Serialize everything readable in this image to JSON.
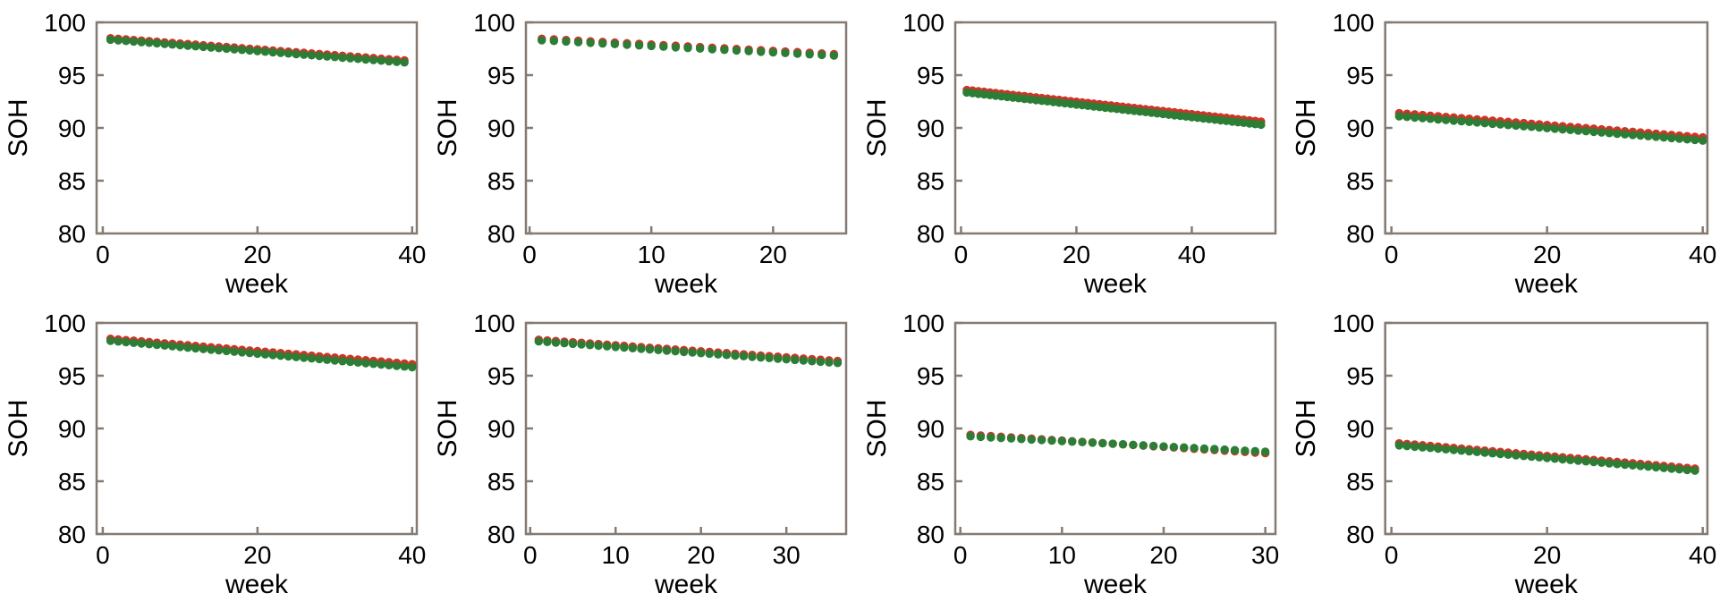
{
  "page": {
    "background": "#ffffff",
    "description": "2x4 grid of SOH degradation scatter plots, red and green dotted series declining linearly over weeks"
  },
  "colors": {
    "series_red": "#cd3527",
    "series_green": "#2c7d36",
    "axis": "#857a72",
    "text": "#000000"
  },
  "labels": {
    "y_axis": "SOH",
    "x_axis": "week"
  },
  "chart_data": [
    {
      "id": "subplot-1",
      "row": 1,
      "col": 1,
      "type": "scatter",
      "title": "",
      "xlabel": "week",
      "ylabel": "SOH",
      "ylim": [
        80,
        100
      ],
      "yticks": [
        80,
        85,
        90,
        95,
        100
      ],
      "xlim": [
        -0.8,
        40.6
      ],
      "xticks": [
        0,
        20,
        40
      ],
      "x_start_week": 1,
      "n_points": 39,
      "trend": "linear",
      "grid": false,
      "legend": "none",
      "series": [
        {
          "name": "red",
          "color": "#cd3527",
          "start": 98.5,
          "end": 96.4
        },
        {
          "name": "green",
          "color": "#2c7d36",
          "start": 98.35,
          "end": 96.2
        }
      ]
    },
    {
      "id": "subplot-2",
      "row": 1,
      "col": 2,
      "type": "scatter",
      "title": "",
      "xlabel": "week",
      "ylabel": "SOH",
      "ylim": [
        80,
        100
      ],
      "yticks": [
        80,
        85,
        90,
        95,
        100
      ],
      "xlim": [
        -0.3,
        26.0
      ],
      "xticks": [
        0,
        10,
        20
      ],
      "x_start_week": 1,
      "n_points": 25,
      "trend": "linear",
      "grid": false,
      "legend": "none",
      "series": [
        {
          "name": "red",
          "color": "#cd3527",
          "start": 98.45,
          "end": 97.0
        },
        {
          "name": "green",
          "color": "#2c7d36",
          "start": 98.3,
          "end": 96.85
        }
      ]
    },
    {
      "id": "subplot-3",
      "row": 1,
      "col": 3,
      "type": "scatter",
      "title": "",
      "xlabel": "week",
      "ylabel": "SOH",
      "ylim": [
        80,
        100
      ],
      "yticks": [
        80,
        85,
        90,
        95,
        100
      ],
      "xlim": [
        -1.0,
        54.5
      ],
      "xticks": [
        0,
        20,
        40
      ],
      "x_start_week": 1,
      "n_points": 52,
      "trend": "linear",
      "grid": false,
      "legend": "none",
      "series": [
        {
          "name": "red",
          "color": "#cd3527",
          "start": 93.6,
          "end": 90.6
        },
        {
          "name": "green",
          "color": "#2c7d36",
          "start": 93.35,
          "end": 90.3
        }
      ]
    },
    {
      "id": "subplot-4",
      "row": 1,
      "col": 4,
      "type": "scatter",
      "title": "",
      "xlabel": "week",
      "ylabel": "SOH",
      "ylim": [
        80,
        100
      ],
      "yticks": [
        80,
        85,
        90,
        95,
        100
      ],
      "xlim": [
        -0.8,
        40.6
      ],
      "xticks": [
        0,
        20,
        40
      ],
      "x_start_week": 1,
      "n_points": 40,
      "trend": "linear",
      "grid": false,
      "legend": "none",
      "series": [
        {
          "name": "red",
          "color": "#cd3527",
          "start": 91.4,
          "end": 89.1
        },
        {
          "name": "green",
          "color": "#2c7d36",
          "start": 91.1,
          "end": 88.8
        }
      ]
    },
    {
      "id": "subplot-5",
      "row": 2,
      "col": 1,
      "type": "scatter",
      "title": "",
      "xlabel": "week",
      "ylabel": "SOH",
      "ylim": [
        80,
        100
      ],
      "yticks": [
        80,
        85,
        90,
        95,
        100
      ],
      "xlim": [
        -0.8,
        40.6
      ],
      "xticks": [
        0,
        20,
        40
      ],
      "x_start_week": 1,
      "n_points": 40,
      "trend": "linear",
      "grid": false,
      "legend": "none",
      "series": [
        {
          "name": "red",
          "color": "#cd3527",
          "start": 98.5,
          "end": 96.1
        },
        {
          "name": "green",
          "color": "#2c7d36",
          "start": 98.3,
          "end": 95.8
        }
      ]
    },
    {
      "id": "subplot-6",
      "row": 2,
      "col": 2,
      "type": "scatter",
      "title": "",
      "xlabel": "week",
      "ylabel": "SOH",
      "ylim": [
        80,
        100
      ],
      "yticks": [
        80,
        85,
        90,
        95,
        100
      ],
      "xlim": [
        -0.5,
        37.0
      ],
      "xticks": [
        0,
        10,
        20,
        30
      ],
      "x_start_week": 1,
      "n_points": 36,
      "trend": "linear",
      "grid": false,
      "legend": "none",
      "series": [
        {
          "name": "red",
          "color": "#cd3527",
          "start": 98.4,
          "end": 96.4
        },
        {
          "name": "green",
          "color": "#2c7d36",
          "start": 98.25,
          "end": 96.2
        }
      ]
    },
    {
      "id": "subplot-7",
      "row": 2,
      "col": 3,
      "type": "scatter",
      "title": "",
      "xlabel": "week",
      "ylabel": "SOH",
      "ylim": [
        80,
        100
      ],
      "yticks": [
        80,
        85,
        90,
        95,
        100
      ],
      "xlim": [
        -0.5,
        31.0
      ],
      "xticks": [
        0,
        10,
        20,
        30
      ],
      "x_start_week": 1,
      "n_points": 30,
      "trend": "linear",
      "grid": false,
      "legend": "none",
      "series": [
        {
          "name": "red",
          "color": "#cd3527",
          "start": 89.4,
          "end": 87.65
        },
        {
          "name": "green",
          "color": "#2c7d36",
          "start": 89.25,
          "end": 87.8
        }
      ]
    },
    {
      "id": "subplot-8",
      "row": 2,
      "col": 4,
      "type": "scatter",
      "title": "",
      "xlabel": "week",
      "ylabel": "SOH",
      "ylim": [
        80,
        100
      ],
      "yticks": [
        80,
        85,
        90,
        95,
        100
      ],
      "xlim": [
        -0.8,
        40.6
      ],
      "xticks": [
        0,
        20,
        40
      ],
      "x_start_week": 1,
      "n_points": 39,
      "trend": "linear",
      "grid": false,
      "legend": "none",
      "series": [
        {
          "name": "red",
          "color": "#cd3527",
          "start": 88.6,
          "end": 86.2
        },
        {
          "name": "green",
          "color": "#2c7d36",
          "start": 88.4,
          "end": 86.0
        }
      ]
    }
  ]
}
